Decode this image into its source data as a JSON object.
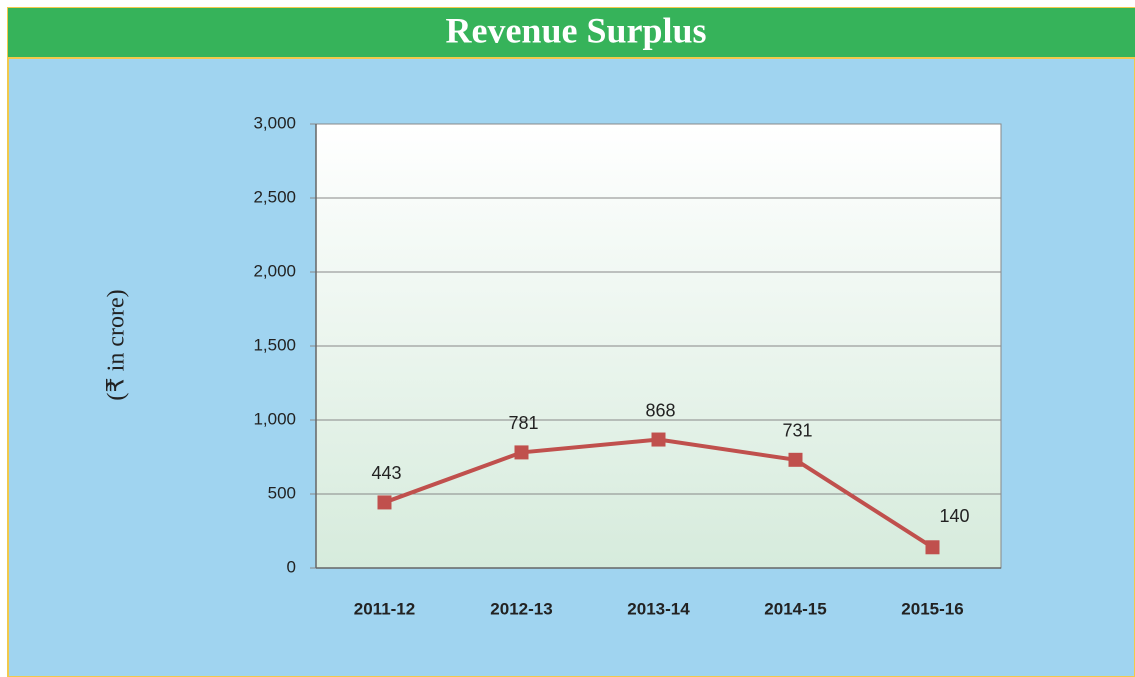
{
  "chart_data": {
    "type": "line",
    "title": "Revenue Surplus",
    "y_label": "(₹ in crore)",
    "categories": [
      "2011-12",
      "2012-13",
      "2013-14",
      "2014-15",
      "2015-16"
    ],
    "series": [
      {
        "name": "Revenue Surplus",
        "color": "#c0504d",
        "values": [
          443,
          781,
          868,
          731,
          140
        ]
      }
    ],
    "ylim": [
      0,
      3000
    ],
    "yticks": [
      0,
      500,
      {
        "value": 1000,
        "label": "1,000"
      },
      {
        "value": 1500,
        "label": "1,500"
      },
      {
        "value": 2000,
        "label": "2,000"
      },
      {
        "value": 2500,
        "label": "2,500"
      },
      {
        "value": 3000,
        "label": "3,000"
      }
    ],
    "grid": true
  }
}
